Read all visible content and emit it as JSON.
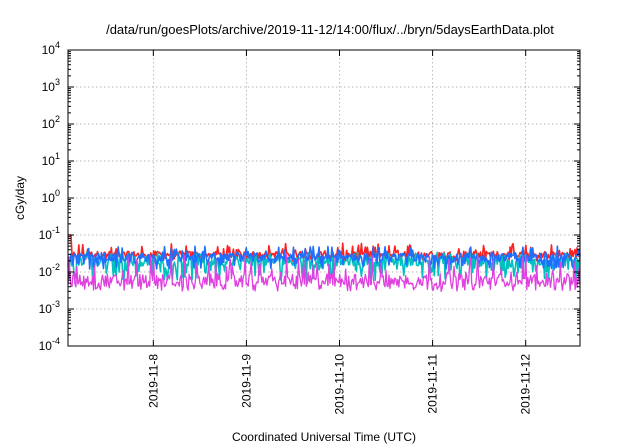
{
  "chart_data": {
    "type": "line",
    "title": "/data/run/goesPlots/archive/2019-11-12/14:00/flux/../bryn/5daysEarthData.plot",
    "xlabel": "Coordinated Universal Time (UTC)",
    "ylabel": "cGy/day",
    "x_range": [
      "2019-11-07T02:00",
      "2019-11-12T14:00"
    ],
    "ylim": [
      0.0001,
      10000
    ],
    "yscale": "log",
    "grid": true,
    "legend": "none",
    "x_ticks": [
      {
        "label": "2019-11-8",
        "value": "2019-11-08T00:00"
      },
      {
        "label": "2019-11-9",
        "value": "2019-11-09T00:00"
      },
      {
        "label": "2019-11-10",
        "value": "2019-11-10T00:00"
      },
      {
        "label": "2019-11-11",
        "value": "2019-11-11T00:00"
      },
      {
        "label": "2019-11-12",
        "value": "2019-11-12T00:00"
      }
    ],
    "y_ticks": [
      {
        "base": "10",
        "exp": "-4",
        "value": 0.0001
      },
      {
        "base": "10",
        "exp": "-3",
        "value": 0.001
      },
      {
        "base": "10",
        "exp": "-2",
        "value": 0.01
      },
      {
        "base": "10",
        "exp": "-1",
        "value": 0.1
      },
      {
        "base": "10",
        "exp": "0",
        "value": 1
      },
      {
        "base": "10",
        "exp": "1",
        "value": 10
      },
      {
        "base": "10",
        "exp": "2",
        "value": 100
      },
      {
        "base": "10",
        "exp": "3",
        "value": 1000
      },
      {
        "base": "10",
        "exp": "4",
        "value": 10000
      }
    ],
    "series": [
      {
        "color": "#ff2020",
        "typical": 0.03,
        "low": 0.02,
        "high": 0.06,
        "start": 0.1
      },
      {
        "color": "#1f6fff",
        "typical": 0.025,
        "low": 0.012,
        "high": 0.05
      },
      {
        "color": "#00c0c0",
        "typical": 0.02,
        "low": 0.006,
        "high": 0.035
      },
      {
        "color": "#e040e0",
        "typical": 0.006,
        "low": 0.003,
        "high": 0.03
      }
    ]
  }
}
